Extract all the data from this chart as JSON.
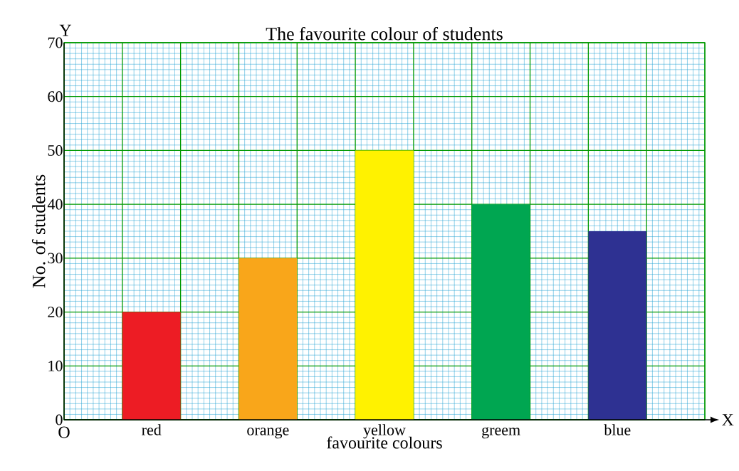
{
  "chart_data": {
    "type": "bar",
    "title": "The favourite colour of students",
    "xlabel": "favourite colours",
    "ylabel": "No. of students",
    "categories": [
      "red",
      "orange",
      "yellow",
      "greem",
      "blue"
    ],
    "values": [
      20,
      30,
      50,
      40,
      35
    ],
    "colors": [
      "#ed1c24",
      "#f9a61a",
      "#fff200",
      "#00a651",
      "#2e3192"
    ],
    "ylim": [
      0,
      70
    ],
    "yticks": [
      0,
      10,
      20,
      30,
      40,
      50,
      60,
      70
    ],
    "grid": true,
    "annotations": [
      "Y",
      "X",
      "O"
    ]
  }
}
